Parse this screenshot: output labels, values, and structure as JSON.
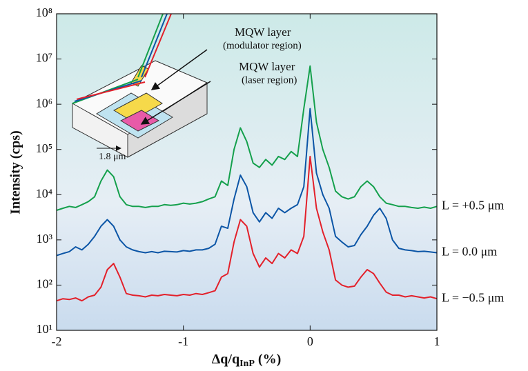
{
  "chart_data": {
    "type": "line",
    "ylabel": "Intensity (cps)",
    "xlabel": [
      "Δq/q",
      "InP",
      "(%)"
    ],
    "yscale": "log",
    "xlim": [
      -2,
      1
    ],
    "ylim": [
      10,
      100000000
    ],
    "xticks": [
      -2,
      -1,
      0,
      1
    ],
    "yticks": [
      {
        "value": 10,
        "label": "10¹"
      },
      {
        "value": 100,
        "label": "10²"
      },
      {
        "value": 1000,
        "label": "10³"
      },
      {
        "value": 10000,
        "label": "10⁴"
      },
      {
        "value": 100000,
        "label": "10⁵"
      },
      {
        "value": 1000000,
        "label": "10⁶"
      },
      {
        "value": 10000000,
        "label": "10⁷"
      },
      {
        "value": 100000000,
        "label": "10⁸"
      }
    ],
    "annotations": [
      "MQW layer",
      "(modulator region)",
      "MQW layer",
      "(laser region)",
      "1.8 μm"
    ],
    "x": [
      -2,
      -1.95,
      -1.9,
      -1.85,
      -1.8,
      -1.75,
      -1.7,
      -1.65,
      -1.6,
      -1.55,
      -1.5,
      -1.45,
      -1.4,
      -1.35,
      -1.3,
      -1.25,
      -1.2,
      -1.15,
      -1.1,
      -1.05,
      -1,
      -0.95,
      -0.9,
      -0.85,
      -0.8,
      -0.75,
      -0.7,
      -0.65,
      -0.6,
      -0.55,
      -0.5,
      -0.45,
      -0.4,
      -0.35,
      -0.3,
      -0.25,
      -0.2,
      -0.15,
      -0.1,
      -0.05,
      0,
      0.05,
      0.1,
      0.15,
      0.2,
      0.25,
      0.3,
      0.35,
      0.4,
      0.45,
      0.5,
      0.55,
      0.6,
      0.65,
      0.7,
      0.75,
      0.8,
      0.85,
      0.9,
      0.95,
      1
    ],
    "series": [
      {
        "name": "L = +0.5 μm",
        "color": "#14a04c",
        "values": [
          4500,
          5000,
          5500,
          5200,
          6000,
          7000,
          9000,
          20000,
          35000,
          25000,
          9000,
          6000,
          5500,
          5500,
          5200,
          5500,
          5500,
          6000,
          5800,
          6000,
          6500,
          6200,
          6500,
          7000,
          8000,
          9000,
          20000,
          16000,
          100000,
          300000,
          150000,
          50000,
          40000,
          60000,
          45000,
          70000,
          60000,
          90000,
          70000,
          800000,
          7000000,
          400000,
          100000,
          40000,
          12000,
          9000,
          8000,
          9000,
          15000,
          20000,
          15000,
          9000,
          6500,
          6000,
          5500,
          5500,
          5200,
          5000,
          5300,
          5000,
          5500
        ]
      },
      {
        "name": "L =  0.0 μm",
        "color": "#0b55a6",
        "values": [
          450,
          500,
          550,
          700,
          600,
          800,
          1200,
          2000,
          2800,
          2000,
          1000,
          700,
          600,
          550,
          520,
          550,
          520,
          560,
          550,
          540,
          580,
          560,
          600,
          600,
          650,
          800,
          2000,
          1800,
          8000,
          27000,
          15000,
          4000,
          2500,
          4000,
          3000,
          5000,
          4000,
          5000,
          6000,
          15000,
          800000,
          30000,
          10000,
          5000,
          1200,
          900,
          700,
          750,
          1300,
          2000,
          3500,
          5000,
          3000,
          1000,
          650,
          600,
          580,
          550,
          560,
          540,
          520
        ]
      },
      {
        "name": "L = −0.5 μm",
        "color": "#e3202a",
        "values": [
          45,
          50,
          48,
          52,
          45,
          55,
          60,
          90,
          220,
          300,
          150,
          65,
          60,
          58,
          55,
          60,
          58,
          62,
          60,
          58,
          62,
          60,
          65,
          62,
          68,
          75,
          150,
          180,
          900,
          2800,
          2000,
          500,
          250,
          400,
          300,
          500,
          400,
          600,
          500,
          1200,
          70000,
          5000,
          1500,
          600,
          130,
          100,
          90,
          95,
          150,
          220,
          180,
          110,
          70,
          60,
          60,
          55,
          58,
          55,
          52,
          55,
          50
        ]
      }
    ]
  }
}
